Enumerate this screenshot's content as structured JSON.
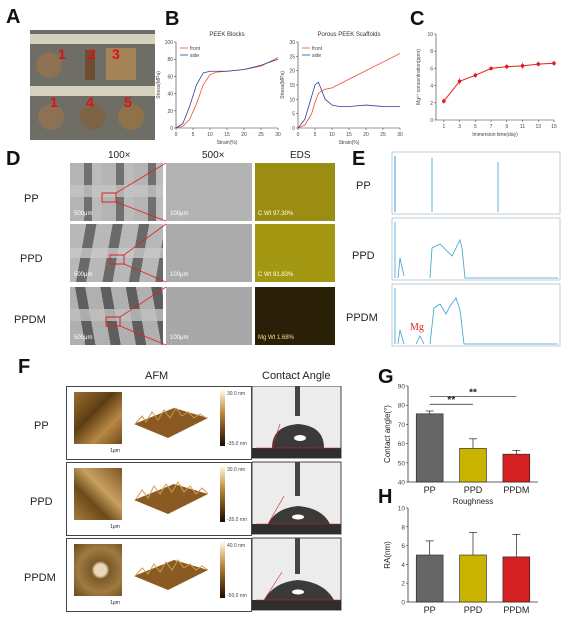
{
  "panels": {
    "A": {
      "label": "A",
      "numbers_top": [
        "1",
        "2",
        "3"
      ],
      "numbers_bottom": [
        "1",
        "4",
        "5"
      ]
    },
    "B": {
      "label": "B"
    },
    "C": {
      "label": "C"
    },
    "D": {
      "label": "D",
      "headers": [
        "100×",
        "500×",
        "EDS"
      ],
      "rows": [
        "PP",
        "PPD",
        "PPDM"
      ],
      "scale_100": "500μm",
      "scale_500": "100μm",
      "eds_text": [
        "C Wt 97.30%",
        "C Wt 91.83%",
        "Mg Wt 1.68%"
      ]
    },
    "E": {
      "label": "E",
      "rows": [
        "PP",
        "PPD",
        "PPDM"
      ],
      "mg_label": "Mg"
    },
    "F": {
      "label": "F",
      "headers": [
        "AFM",
        "Contact Angle"
      ],
      "rows": [
        "PP",
        "PPD",
        "PPDM"
      ],
      "scale": "1μm",
      "colorbar": [
        [
          "30.0 nm",
          "-35.0 nm"
        ],
        [
          "30.0 nm",
          "-35.0 nm"
        ],
        [
          "40.0 nm",
          "-50.0 nm"
        ]
      ]
    },
    "G": {
      "label": "G"
    },
    "H": {
      "label": "H"
    }
  },
  "chart_data": [
    {
      "id": "B-left",
      "type": "line",
      "title": "PEEK Blocks",
      "xlabel": "Strain(%)",
      "ylabel": "Stress(MPa)",
      "xlim": [
        0,
        30
      ],
      "ylim": [
        0,
        100
      ],
      "xticks": [
        0,
        5,
        10,
        15,
        20,
        25,
        30
      ],
      "yticks": [
        0,
        20,
        40,
        60,
        80,
        100
      ],
      "legend": "top-left",
      "series": [
        {
          "name": "front",
          "color": "#f05030",
          "x": [
            0,
            2,
            4,
            6,
            8,
            10,
            12,
            15,
            20,
            25,
            30
          ],
          "y": [
            0,
            2,
            10,
            28,
            50,
            62,
            65,
            66,
            68,
            72,
            82
          ]
        },
        {
          "name": "side",
          "color": "#3040a0",
          "x": [
            0,
            2,
            4,
            6,
            8,
            10,
            12,
            15,
            20,
            25,
            30
          ],
          "y": [
            0,
            5,
            25,
            50,
            64,
            66,
            66,
            66,
            68,
            73,
            80
          ]
        }
      ]
    },
    {
      "id": "B-right",
      "type": "line",
      "title": "Porous PEEK Scaffolds",
      "xlabel": "Strain(%)",
      "ylabel": "Stress(MPa)",
      "xlim": [
        0,
        30
      ],
      "ylim": [
        0,
        30
      ],
      "xticks": [
        0,
        5,
        10,
        15,
        20,
        25,
        30
      ],
      "yticks": [
        0,
        5,
        10,
        15,
        20,
        25,
        30
      ],
      "legend": "top-left",
      "series": [
        {
          "name": "front",
          "color": "#f05030",
          "x": [
            0,
            2,
            4,
            5,
            6,
            7,
            8,
            10,
            15,
            20,
            25,
            30
          ],
          "y": [
            0,
            1,
            5,
            9,
            12,
            13,
            13.5,
            14,
            17,
            20,
            23,
            26
          ]
        },
        {
          "name": "side",
          "color": "#3040a0",
          "x": [
            0,
            2,
            4,
            5,
            6,
            7,
            8,
            10,
            12,
            15,
            20,
            25,
            30
          ],
          "y": [
            0,
            3,
            11,
            15,
            16,
            13,
            10,
            8,
            7.5,
            7.5,
            8,
            7.5,
            7.5
          ]
        }
      ]
    },
    {
      "id": "C",
      "type": "line",
      "xlabel": "Immersion time(day)",
      "ylabel": "Mg²⁺ concentration(ppm)",
      "xlim": [
        0,
        15
      ],
      "ylim": [
        0,
        10
      ],
      "xticks": [
        1,
        3,
        5,
        7,
        9,
        11,
        13,
        15
      ],
      "yticks": [
        0,
        2,
        4,
        6,
        8,
        10
      ],
      "series": [
        {
          "color": "#e02020",
          "x": [
            1,
            3,
            5,
            7,
            9,
            11,
            13,
            15
          ],
          "y": [
            2.2,
            4.5,
            5.2,
            6.0,
            6.2,
            6.3,
            6.5,
            6.6
          ],
          "err": [
            0.3,
            0.4,
            0.3,
            0.2,
            0.3,
            0.4,
            0.3,
            0.3
          ]
        }
      ]
    },
    {
      "id": "G",
      "type": "bar",
      "ylabel": "Contact angle(°)",
      "categories": [
        "PP",
        "PPD",
        "PPDM"
      ],
      "values": [
        75.5,
        57.5,
        54.5
      ],
      "err": [
        1.5,
        5,
        2
      ],
      "colors": [
        "#666666",
        "#c8b400",
        "#d42020"
      ],
      "ylim": [
        40,
        90
      ],
      "yticks": [
        40,
        50,
        60,
        70,
        80,
        90
      ],
      "significance": [
        "**",
        "**"
      ]
    },
    {
      "id": "H",
      "type": "bar",
      "title": "Roughness",
      "ylabel": "RA(nm)",
      "categories": [
        "PP",
        "PPD",
        "PPDM"
      ],
      "values": [
        5.0,
        5.0,
        4.8
      ],
      "err": [
        1.5,
        2.4,
        2.4
      ],
      "colors": [
        "#666666",
        "#c8b400",
        "#d42020"
      ],
      "ylim": [
        0,
        10
      ],
      "yticks": [
        0,
        2,
        4,
        6,
        8,
        10
      ]
    }
  ]
}
